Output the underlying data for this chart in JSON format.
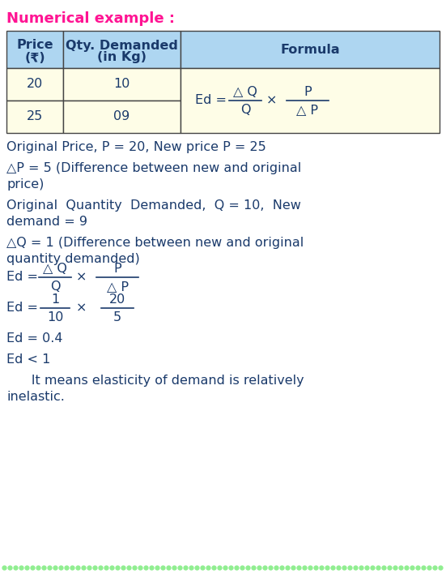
{
  "title": "Numerical example :",
  "title_color": "#FF1493",
  "bg_color": "#FFFFFF",
  "text_color": "#1a3a6b",
  "table_header_bg": "#AED6F1",
  "table_data_bg": "#FEFDE7",
  "table_border_color": "#555555",
  "dot_color": "#90EE90",
  "col1_header_line1": "Price",
  "col1_header_line2": "(₹)",
  "col2_header_line1": "Qty. Demanded",
  "col2_header_line2": "(in Kg)",
  "col3_header": "Formula",
  "row1_col1": "20",
  "row1_col2": "10",
  "row2_col1": "25",
  "row2_col2": "09",
  "line0": "Original Price, P = 20, New price P = 25",
  "line1a": "△P = 5 (Difference between new and original",
  "line1b": "price)",
  "line2a": "Original  Quantity  Demanded,  Q = 10,  New",
  "line2b": "demand = 9",
  "line3a": "△Q = 1 (Difference between new and original",
  "line3b": "quantity demanded)",
  "result1": "Ed = 0.4",
  "result2": "Ed < 1",
  "conclusion_a": "      It means elasticity of demand is relatively",
  "conclusion_b": "inelastic."
}
